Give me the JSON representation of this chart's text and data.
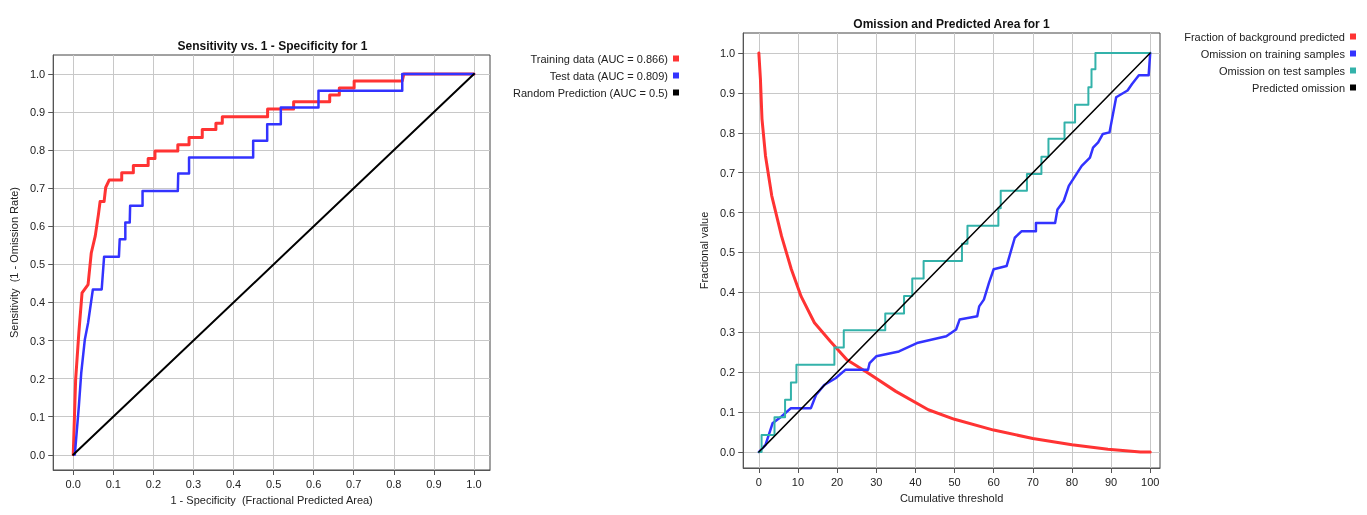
{
  "chart_data": [
    {
      "type": "line",
      "title": "Sensitivity vs. 1 - Specificity for 1",
      "xlabel": "1 - Specificity  (Fractional Predicted Area)",
      "ylabel": "Sensitivity  (1 - Omission Rate)",
      "grid": true,
      "legend": "top right",
      "marker": "none",
      "line_style": "solid",
      "xlim": [
        -0.05,
        1.04
      ],
      "ylim": [
        -0.04,
        1.05
      ],
      "xticks": [
        {
          "value": 0,
          "label": "0.0"
        },
        {
          "value": 0.1,
          "label": "0.1"
        },
        {
          "value": 0.2,
          "label": "0.2"
        },
        {
          "value": 0.3,
          "label": "0.3"
        },
        {
          "value": 0.4,
          "label": "0.4"
        },
        {
          "value": 0.5,
          "label": "0.5"
        },
        {
          "value": 0.6,
          "label": "0.6"
        },
        {
          "value": 0.7,
          "label": "0.7"
        },
        {
          "value": 0.8,
          "label": "0.8"
        },
        {
          "value": 0.9,
          "label": "0.9"
        },
        {
          "value": 1,
          "label": "1.0"
        }
      ],
      "yticks": [
        {
          "value": 0,
          "label": "0.0"
        },
        {
          "value": 0.1,
          "label": "0.1"
        },
        {
          "value": 0.2,
          "label": "0.2"
        },
        {
          "value": 0.3,
          "label": "0.3"
        },
        {
          "value": 0.4,
          "label": "0.4"
        },
        {
          "value": 0.5,
          "label": "0.5"
        },
        {
          "value": 0.6,
          "label": "0.6"
        },
        {
          "value": 0.7,
          "label": "0.7"
        },
        {
          "value": 0.8,
          "label": "0.8"
        },
        {
          "value": 0.9,
          "label": "0.9"
        },
        {
          "value": 1,
          "label": "1.0"
        }
      ],
      "series": [
        {
          "name": "Training data (AUC = 0.866)",
          "color": "#ff3333",
          "x": [
            0,
            0.006,
            0.014,
            0.022,
            0.037,
            0.045,
            0.055,
            0.063,
            0.067,
            0.077,
            0.081,
            0.09,
            0.121,
            0.121,
            0.15,
            0.15,
            0.187,
            0.187,
            0.204,
            0.204,
            0.261,
            0.261,
            0.289,
            0.289,
            0.322,
            0.322,
            0.356,
            0.356,
            0.372,
            0.372,
            0.485,
            0.485,
            0.55,
            0.55,
            0.64,
            0.64,
            0.664,
            0.664,
            0.701,
            0.701,
            0.821,
            0.825,
            1
          ],
          "values": [
            0,
            0.197,
            0.32,
            0.425,
            0.447,
            0.53,
            0.575,
            0.632,
            0.665,
            0.665,
            0.702,
            0.722,
            0.722,
            0.741,
            0.741,
            0.76,
            0.76,
            0.778,
            0.778,
            0.798,
            0.798,
            0.814,
            0.814,
            0.833,
            0.833,
            0.854,
            0.854,
            0.871,
            0.871,
            0.888,
            0.888,
            0.908,
            0.908,
            0.927,
            0.927,
            0.945,
            0.945,
            0.963,
            0.963,
            0.982,
            0.982,
            1,
            1
          ]
        },
        {
          "name": "Test data (AUC = 0.809)",
          "color": "#3333ff",
          "x": [
            0.004,
            0.014,
            0.02,
            0.029,
            0.037,
            0.049,
            0.071,
            0.077,
            0.114,
            0.116,
            0.13,
            0.13,
            0.141,
            0.142,
            0.173,
            0.173,
            0.261,
            0.262,
            0.289,
            0.289,
            0.449,
            0.449,
            0.484,
            0.484,
            0.518,
            0.518,
            0.612,
            0.612,
            0.821,
            0.821,
            1
          ],
          "values": [
            0,
            0.127,
            0.215,
            0.303,
            0.346,
            0.434,
            0.434,
            0.52,
            0.52,
            0.566,
            0.566,
            0.61,
            0.61,
            0.654,
            0.654,
            0.693,
            0.693,
            0.739,
            0.739,
            0.781,
            0.781,
            0.825,
            0.825,
            0.868,
            0.868,
            0.912,
            0.912,
            0.956,
            0.956,
            1,
            1
          ]
        },
        {
          "name": "Random Prediction (AUC = 0.5)",
          "color": "#000000",
          "x": [
            0,
            1
          ],
          "values": [
            0,
            1
          ]
        }
      ]
    },
    {
      "type": "line",
      "title": "Omission and Predicted Area for 1",
      "xlabel": "Cumulative threshold",
      "ylabel": "Fractional value",
      "grid": true,
      "legend": "top right",
      "marker": "none",
      "line_style": "solid",
      "xlim": [
        -4,
        102.5
      ],
      "ylim": [
        -0.04,
        1.05
      ],
      "xticks": [
        0,
        10,
        20,
        30,
        40,
        50,
        60,
        70,
        80,
        90,
        100
      ],
      "yticks": [
        {
          "value": 0,
          "label": "0.0"
        },
        {
          "value": 0.1,
          "label": "0.1"
        },
        {
          "value": 0.2,
          "label": "0.2"
        },
        {
          "value": 0.3,
          "label": "0.3"
        },
        {
          "value": 0.4,
          "label": "0.4"
        },
        {
          "value": 0.5,
          "label": "0.5"
        },
        {
          "value": 0.6,
          "label": "0.6"
        },
        {
          "value": 0.7,
          "label": "0.7"
        },
        {
          "value": 0.8,
          "label": "0.8"
        },
        {
          "value": 0.9,
          "label": "0.9"
        },
        {
          "value": 1,
          "label": "1.0"
        }
      ],
      "series": [
        {
          "name": "Fraction of background predicted",
          "color": "#ff3333",
          "x": [
            0,
            0.4,
            0.8,
            1.7,
            3.3,
            5.8,
            8.3,
            10.8,
            14.2,
            18.3,
            22.5,
            27.9,
            35,
            43.3,
            50,
            60,
            70,
            80,
            89.2,
            97.5,
            100
          ],
          "values": [
            1,
            0.935,
            0.835,
            0.742,
            0.642,
            0.541,
            0.458,
            0.39,
            0.324,
            0.277,
            0.231,
            0.198,
            0.152,
            0.106,
            0.082,
            0.055,
            0.034,
            0.018,
            0.007,
            0,
            0
          ]
        },
        {
          "name": "Omission on training samples",
          "color": "#3333ff",
          "x": [
            0,
            1.7,
            3.5,
            5.8,
            8.2,
            13.3,
            14.6,
            16.7,
            19.6,
            22.1,
            27.9,
            28.3,
            30,
            35.8,
            40.4,
            47.9,
            50.4,
            51.3,
            55.8,
            56.3,
            57.5,
            58.8,
            60,
            63.3,
            65.4,
            67.1,
            70.8,
            70.8,
            75.7,
            76.3,
            77.9,
            79.2,
            82.5,
            84.6,
            85.4,
            86.7,
            87.9,
            89.6,
            91.3,
            94.2,
            95.4,
            97.1,
            99.6,
            100
          ],
          "values": [
            0,
            0.018,
            0.072,
            0.089,
            0.11,
            0.11,
            0.143,
            0.168,
            0.185,
            0.206,
            0.206,
            0.223,
            0.24,
            0.252,
            0.273,
            0.29,
            0.307,
            0.332,
            0.34,
            0.365,
            0.382,
            0.424,
            0.458,
            0.466,
            0.537,
            0.553,
            0.553,
            0.574,
            0.574,
            0.608,
            0.629,
            0.667,
            0.717,
            0.738,
            0.763,
            0.776,
            0.797,
            0.801,
            0.889,
            0.906,
            0.923,
            0.944,
            0.944,
            1
          ]
        },
        {
          "name": "Omission on test samples",
          "color": "#33b2aa",
          "x": [
            0,
            0.7,
            0.7,
            4,
            4,
            6.7,
            6.7,
            8.2,
            8.2,
            9.6,
            9.6,
            19.3,
            19.3,
            21.7,
            21.7,
            32.3,
            32.3,
            37.1,
            37.1,
            39.2,
            39.2,
            42.1,
            42.1,
            51.9,
            51.9,
            53.3,
            53.3,
            61.2,
            61.2,
            61.8,
            61.8,
            68.5,
            68.5,
            72.2,
            72.2,
            74,
            74,
            78.1,
            78.1,
            80.8,
            80.8,
            84.2,
            84.2,
            85,
            85,
            86,
            86,
            100
          ],
          "values": [
            0,
            0,
            0.043,
            0.043,
            0.087,
            0.087,
            0.131,
            0.131,
            0.174,
            0.174,
            0.219,
            0.219,
            0.262,
            0.262,
            0.305,
            0.305,
            0.347,
            0.347,
            0.391,
            0.391,
            0.435,
            0.435,
            0.479,
            0.479,
            0.522,
            0.522,
            0.567,
            0.567,
            0.611,
            0.611,
            0.655,
            0.655,
            0.697,
            0.697,
            0.74,
            0.74,
            0.785,
            0.785,
            0.826,
            0.826,
            0.87,
            0.87,
            0.914,
            0.914,
            0.959,
            0.959,
            1,
            1
          ]
        },
        {
          "name": "Predicted omission",
          "color": "#000000",
          "x": [
            0,
            100
          ],
          "values": [
            0,
            1
          ]
        }
      ]
    }
  ]
}
